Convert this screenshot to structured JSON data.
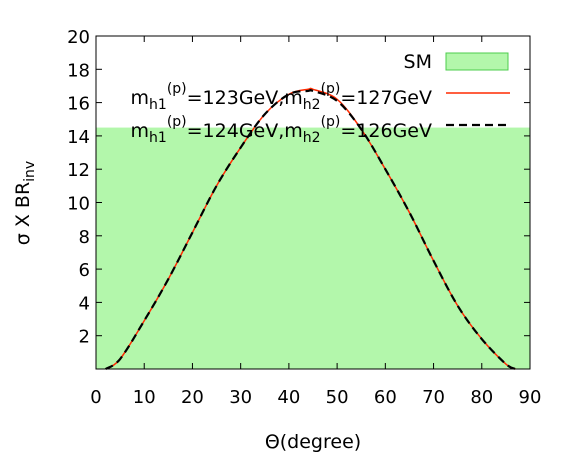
{
  "chart_data": {
    "type": "line",
    "xlabel": "Θ(degree)",
    "ylabel": "σ X BR",
    "ylabel_sub": "inv",
    "xlim": [
      0,
      90
    ],
    "ylim": [
      0,
      20
    ],
    "x_ticks": [
      0,
      10,
      20,
      30,
      40,
      50,
      60,
      70,
      80,
      90
    ],
    "y_ticks": [
      2,
      4,
      6,
      8,
      10,
      12,
      14,
      16,
      18,
      20
    ],
    "grid": false,
    "legend_position": "top-right",
    "band": {
      "name": "SM",
      "y_from": 0,
      "y_to": 14.5,
      "color": "#b3f7ab",
      "edge_color": "#4ccc4c"
    },
    "series": [
      {
        "name_parts": [
          "m",
          "h1",
          "(p)",
          "=123GeV,m",
          "h2",
          "(p)",
          "=127GeV"
        ],
        "color": "#ff2a00",
        "style": "solid",
        "x": [
          2,
          5,
          10,
          15,
          20,
          25,
          30,
          35,
          40,
          44,
          45,
          50,
          55,
          60,
          65,
          70,
          75,
          80,
          85,
          87
        ],
        "y": [
          0,
          0.6,
          2.9,
          5.4,
          8.2,
          11.0,
          13.3,
          15.3,
          16.5,
          16.8,
          16.8,
          16.2,
          14.4,
          12.0,
          9.4,
          6.5,
          3.8,
          1.8,
          0.3,
          0
        ]
      },
      {
        "name_parts": [
          "m",
          "h1",
          "(p)",
          "=124GeV,m",
          "h2",
          "(p)",
          "=126GeV"
        ],
        "color": "#000000",
        "style": "dashed",
        "x": [
          2,
          5,
          10,
          15,
          20,
          25,
          30,
          35,
          40,
          44,
          45,
          50,
          55,
          60,
          65,
          70,
          75,
          80,
          85,
          87
        ],
        "y": [
          0,
          0.6,
          2.9,
          5.4,
          8.2,
          11.0,
          13.3,
          15.3,
          16.5,
          16.7,
          16.7,
          16.1,
          14.4,
          12.0,
          9.4,
          6.5,
          3.8,
          1.8,
          0.3,
          0
        ]
      }
    ]
  }
}
